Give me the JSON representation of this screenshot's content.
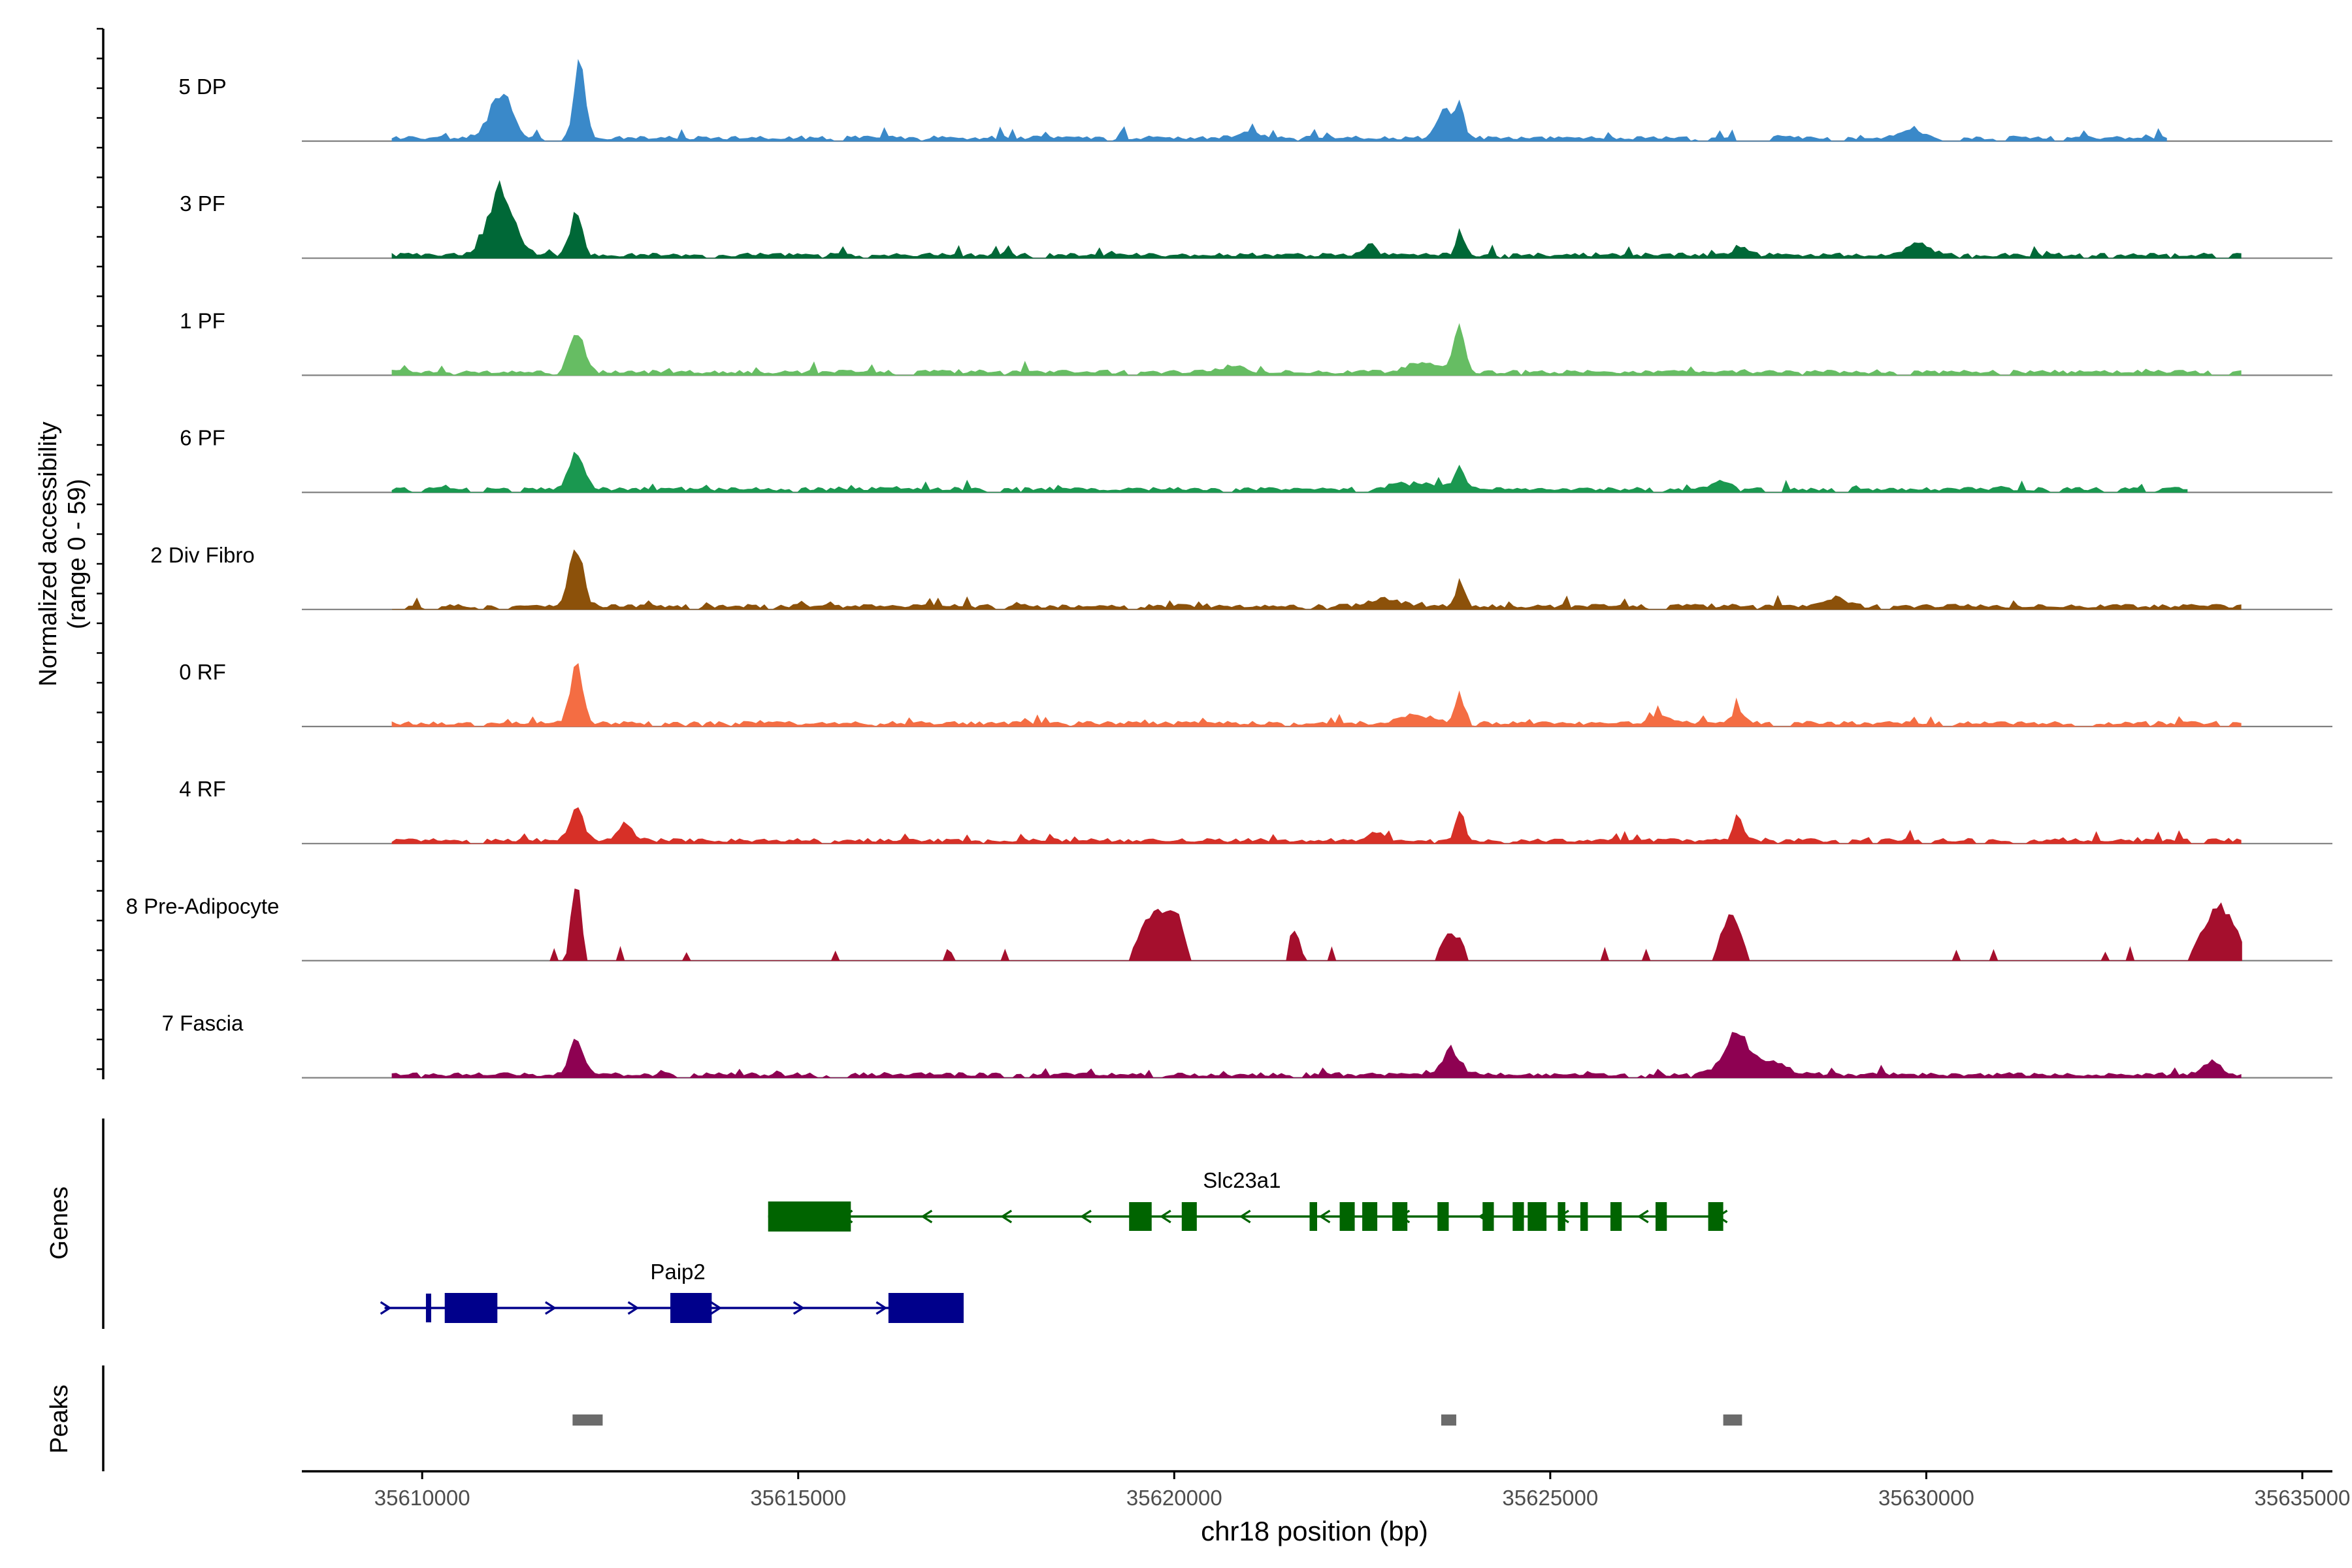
{
  "chart_data": {
    "type": "area",
    "title": "",
    "xlabel": "chr18 position (bp)",
    "ylabel_line1": "Normalized accessibility",
    "ylabel_line2": "(range 0 - 59)",
    "xlim": [
      35608400,
      35635400
    ],
    "xticks": [
      35610000,
      35615000,
      35620000,
      35625000,
      35630000,
      35635000
    ],
    "xtick_labels": [
      "35610000",
      "35615000",
      "35620000",
      "35625000",
      "35630000",
      "35635000"
    ],
    "tracks": [
      {
        "name": "5 DP",
        "color": "#3A89C9",
        "seed": 11,
        "sparse": false,
        "start": 35609600,
        "end": 35633200,
        "peaks": [
          [
            35611050,
            0.52,
            160
          ],
          [
            35612100,
            1.0,
            70
          ],
          [
            35623600,
            0.35,
            100
          ],
          [
            35623800,
            0.48,
            50
          ],
          [
            35629800,
            0.12,
            120
          ],
          [
            35621000,
            0.08,
            150
          ]
        ]
      },
      {
        "name": "3 PF",
        "color": "#006837",
        "seed": 23,
        "sparse": false,
        "start": 35609600,
        "end": 35634200,
        "peaks": [
          [
            35611050,
            0.85,
            170
          ],
          [
            35612050,
            0.58,
            80
          ],
          [
            35623800,
            0.3,
            60
          ],
          [
            35622600,
            0.14,
            80
          ],
          [
            35627500,
            0.12,
            100
          ],
          [
            35629900,
            0.14,
            150
          ]
        ]
      },
      {
        "name": "1 PF",
        "color": "#66BD63",
        "seed": 37,
        "sparse": false,
        "start": 35609600,
        "end": 35634200,
        "peaks": [
          [
            35612050,
            0.55,
            90
          ],
          [
            35623780,
            0.6,
            70
          ],
          [
            35623300,
            0.12,
            200
          ],
          [
            35620800,
            0.08,
            150
          ]
        ]
      },
      {
        "name": "6 PF",
        "color": "#1A9850",
        "seed": 41,
        "sparse": false,
        "start": 35609600,
        "end": 35633500,
        "peaks": [
          [
            35612050,
            0.48,
            100
          ],
          [
            35623800,
            0.25,
            80
          ],
          [
            35623200,
            0.1,
            250
          ],
          [
            35627300,
            0.12,
            100
          ]
        ]
      },
      {
        "name": "2 Div Fibro",
        "color": "#8C510A",
        "seed": 53,
        "sparse": false,
        "start": 35609600,
        "end": 35634200,
        "peaks": [
          [
            35612050,
            0.72,
            90
          ],
          [
            35623800,
            0.32,
            60
          ],
          [
            35622800,
            0.1,
            200
          ],
          [
            35628800,
            0.12,
            120
          ]
        ]
      },
      {
        "name": "0 RF",
        "color": "#F46D43",
        "seed": 67,
        "sparse": false,
        "start": 35609600,
        "end": 35634200,
        "peaks": [
          [
            35612050,
            0.8,
            80
          ],
          [
            35623800,
            0.38,
            60
          ],
          [
            35623200,
            0.12,
            200
          ],
          [
            35627500,
            0.2,
            80
          ],
          [
            35626500,
            0.1,
            120
          ]
        ]
      },
      {
        "name": "4 RF",
        "color": "#D73027",
        "seed": 71,
        "sparse": false,
        "start": 35609600,
        "end": 35634200,
        "peaks": [
          [
            35612050,
            0.42,
            90
          ],
          [
            35612700,
            0.2,
            100
          ],
          [
            35623800,
            0.38,
            60
          ],
          [
            35627500,
            0.35,
            60
          ],
          [
            35622700,
            0.12,
            100
          ]
        ]
      },
      {
        "name": "8 Pre-Adipocyte",
        "color": "#A50F2D",
        "seed": 83,
        "sparse": true,
        "start": 35611700,
        "end": 35634200,
        "peaks": [
          [
            35612050,
            1.0,
            60
          ],
          [
            35619700,
            0.62,
            150
          ],
          [
            35620000,
            0.58,
            110
          ],
          [
            35621600,
            0.45,
            60
          ],
          [
            35623700,
            0.35,
            130
          ],
          [
            35627400,
            0.6,
            120
          ],
          [
            35633900,
            0.72,
            200
          ]
        ]
      },
      {
        "name": "7 Fascia",
        "color": "#8E0152",
        "seed": 97,
        "sparse": false,
        "start": 35609600,
        "end": 35634200,
        "peaks": [
          [
            35612050,
            0.45,
            90
          ],
          [
            35623700,
            0.3,
            120
          ],
          [
            35627500,
            0.48,
            180
          ],
          [
            35628000,
            0.15,
            150
          ],
          [
            35633800,
            0.15,
            120
          ]
        ]
      }
    ],
    "genes_label": "Genes",
    "genes": [
      {
        "name": "Slc23a1",
        "color": "#006400",
        "strand": "-",
        "start": 35614600,
        "end": 35627300,
        "exons": [
          [
            35614600,
            35615700
          ],
          [
            35619400,
            35619700
          ],
          [
            35620100,
            35620300
          ],
          [
            35621800,
            35621900
          ],
          [
            35622200,
            35622400
          ],
          [
            35622500,
            35622700
          ],
          [
            35622900,
            35623100
          ],
          [
            35623500,
            35623650
          ],
          [
            35624100,
            35624250
          ],
          [
            35624500,
            35624650
          ],
          [
            35624700,
            35624950
          ],
          [
            35625100,
            35625200
          ],
          [
            35625400,
            35625500
          ],
          [
            35625800,
            35625950
          ],
          [
            35626400,
            35626550
          ],
          [
            35627100,
            35627300
          ]
        ]
      },
      {
        "name": "Paip2",
        "color": "#00008B",
        "strand": "+",
        "start": 35609500,
        "end": 35617200,
        "exons": [
          [
            35610050,
            35610120
          ],
          [
            35610300,
            35611000
          ],
          [
            35613300,
            35613850
          ],
          [
            35616200,
            35617200
          ]
        ]
      }
    ],
    "peaks_label": "Peaks",
    "peak_regions": [
      [
        35612000,
        35612400
      ],
      [
        35623550,
        35623750
      ],
      [
        35627300,
        35627550
      ]
    ]
  }
}
